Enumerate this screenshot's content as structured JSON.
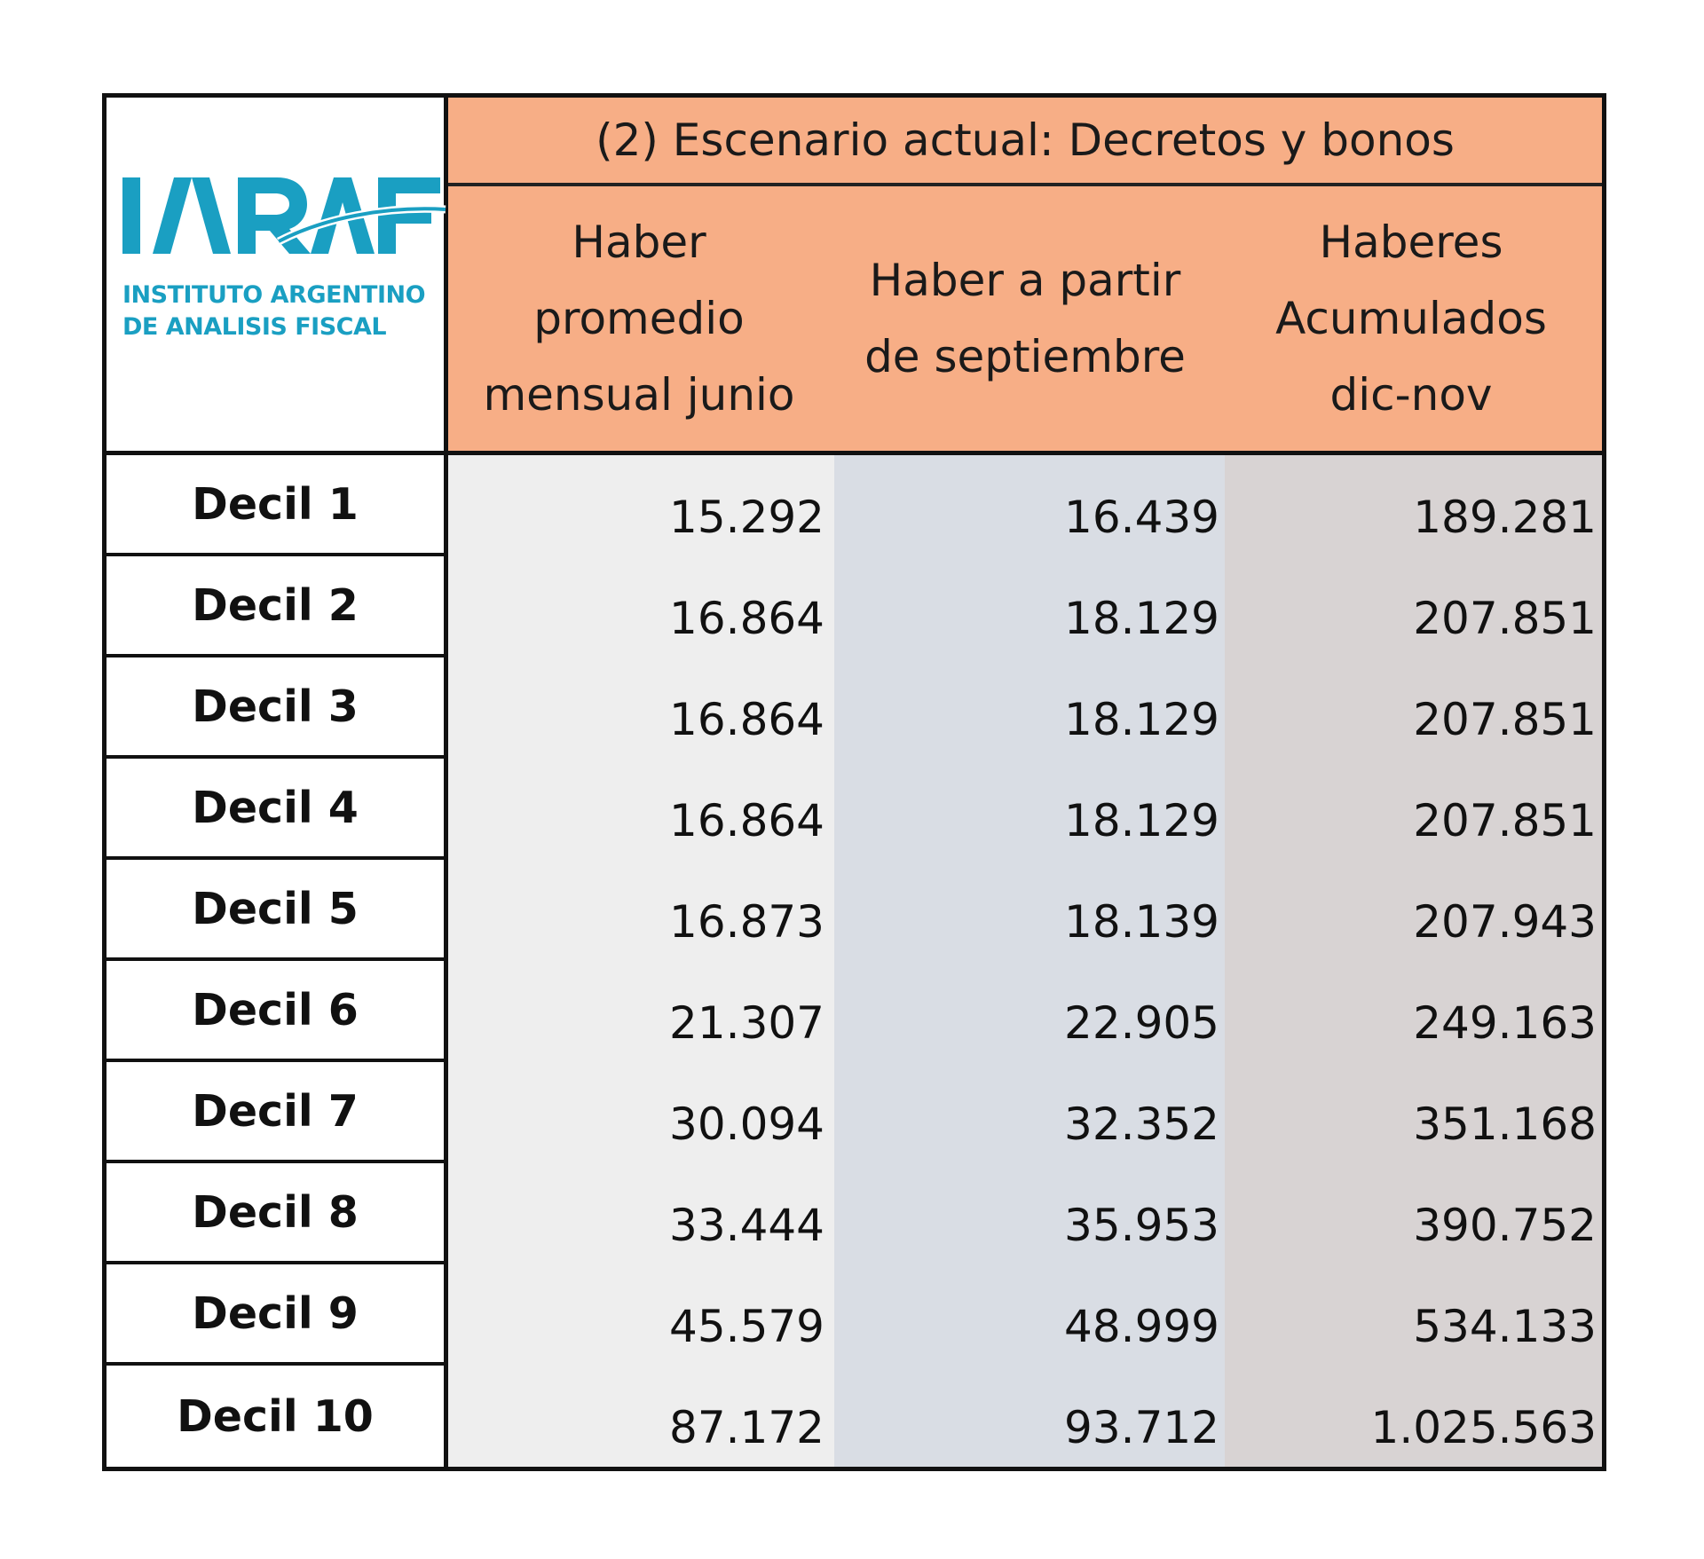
{
  "logo": {
    "acronym": "IARAF",
    "line1": "INSTITUTO ARGENTINO",
    "line2": "DE ANALISIS FISCAL",
    "color": "#1a9fc2"
  },
  "table": {
    "scenario_title": "(2) Escenario actual: Decretos y bonos",
    "header_color": "#f7ae86",
    "columns": [
      {
        "label": "Haber\npromedio\nmensual junio",
        "bg": "#eeeeee"
      },
      {
        "label": "Haber a partir\nde septiembre",
        "bg": "#d9dde4"
      },
      {
        "label": "Haberes\nAcumulados\ndic-nov",
        "bg": "#d8d3d3"
      }
    ],
    "rows": [
      {
        "label": "Decil 1",
        "values": [
          "15.292",
          "16.439",
          "189.281"
        ]
      },
      {
        "label": "Decil 2",
        "values": [
          "16.864",
          "18.129",
          "207.851"
        ]
      },
      {
        "label": "Decil 3",
        "values": [
          "16.864",
          "18.129",
          "207.851"
        ]
      },
      {
        "label": "Decil 4",
        "values": [
          "16.864",
          "18.129",
          "207.851"
        ]
      },
      {
        "label": "Decil 5",
        "values": [
          "16.873",
          "18.139",
          "207.943"
        ]
      },
      {
        "label": "Decil 6",
        "values": [
          "21.307",
          "22.905",
          "249.163"
        ]
      },
      {
        "label": "Decil 7",
        "values": [
          "30.094",
          "32.352",
          "351.168"
        ]
      },
      {
        "label": "Decil 8",
        "values": [
          "33.444",
          "35.953",
          "390.752"
        ]
      },
      {
        "label": "Decil 9",
        "values": [
          "45.579",
          "48.999",
          "534.133"
        ]
      },
      {
        "label": "Decil 10",
        "values": [
          "87.172",
          "93.712",
          "1.025.563"
        ]
      }
    ]
  }
}
